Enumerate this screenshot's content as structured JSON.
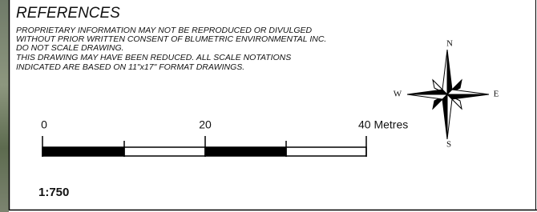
{
  "title": "REFERENCES",
  "notes": [
    "PROPRIETARY INFORMATION MAY NOT BE REPRODUCED OR DIVULGED",
    "WITHOUT PRIOR WRITTEN CONSENT OF BLUMETRIC ENVIRONMENTAL INC.",
    "DO NOT SCALE DRAWING.",
    "THIS DRAWING MAY HAVE BEEN REDUCED. ALL SCALE NOTATIONS",
    "INDICATED ARE BASED ON 11\"x17\" FORMAT DRAWINGS."
  ],
  "compass": {
    "north": "N",
    "east": "E",
    "south": "S",
    "west": "W"
  },
  "scale_bar": {
    "labels": [
      "0",
      "20",
      "40 Metres"
    ]
  },
  "scale": "1:750"
}
